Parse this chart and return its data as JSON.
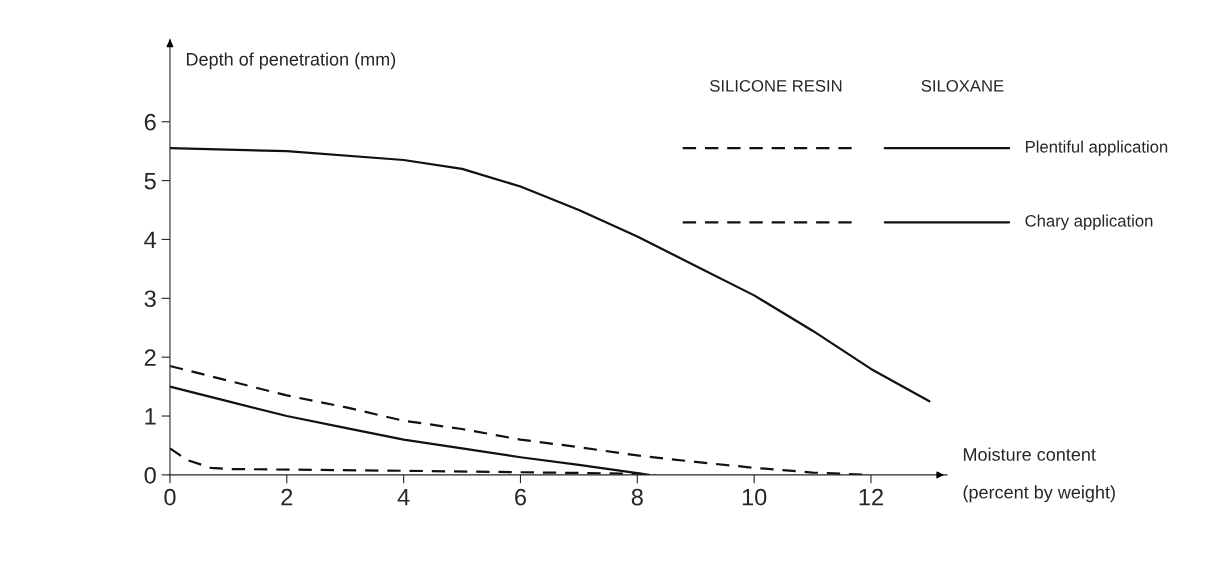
{
  "chart_data": {
    "type": "line",
    "ylabel": "Depth of penetration (mm)",
    "xlabel": "Moisture content\n(percent by weight)",
    "xlim": [
      0,
      13.3
    ],
    "ylim": [
      0,
      7.4
    ],
    "xticks": [
      0,
      2,
      4,
      6,
      8,
      10,
      12
    ],
    "yticks": [
      0,
      1,
      2,
      3,
      4,
      5,
      6
    ],
    "grid": false,
    "legend": false,
    "marker": "none",
    "annotations": [
      "SILICONE RESIN",
      "SILOXANE",
      "Plentiful application",
      "Chary application"
    ],
    "series": [
      {
        "color": "#111111",
        "line_style": "solid",
        "x": [
          0,
          2,
          4,
          5,
          6,
          7,
          8,
          9,
          10,
          11,
          12,
          13
        ],
        "values": [
          5.55,
          5.5,
          5.35,
          5.2,
          4.9,
          4.5,
          4.05,
          3.55,
          3.05,
          2.45,
          1.8,
          1.25
        ]
      },
      {
        "color": "#111111",
        "line_style": "dashed",
        "x": [
          0,
          1,
          2,
          3,
          4,
          5,
          6,
          7,
          8,
          9,
          10,
          11,
          12
        ],
        "values": [
          1.85,
          1.6,
          1.35,
          1.15,
          0.92,
          0.78,
          0.6,
          0.47,
          0.33,
          0.22,
          0.12,
          0.04,
          0
        ]
      },
      {
        "color": "#111111",
        "line_style": "solid",
        "x": [
          0,
          1,
          2,
          3,
          4,
          5,
          6,
          7,
          8,
          8.2
        ],
        "values": [
          1.5,
          1.25,
          1.0,
          0.8,
          0.6,
          0.45,
          0.3,
          0.17,
          0.03,
          0
        ]
      },
      {
        "color": "#111111",
        "line_style": "dashed",
        "x": [
          0,
          0.3,
          0.7,
          1,
          4,
          8,
          8.3
        ],
        "values": [
          0.45,
          0.25,
          0.12,
          0.1,
          0.07,
          0.02,
          0
        ]
      }
    ]
  }
}
